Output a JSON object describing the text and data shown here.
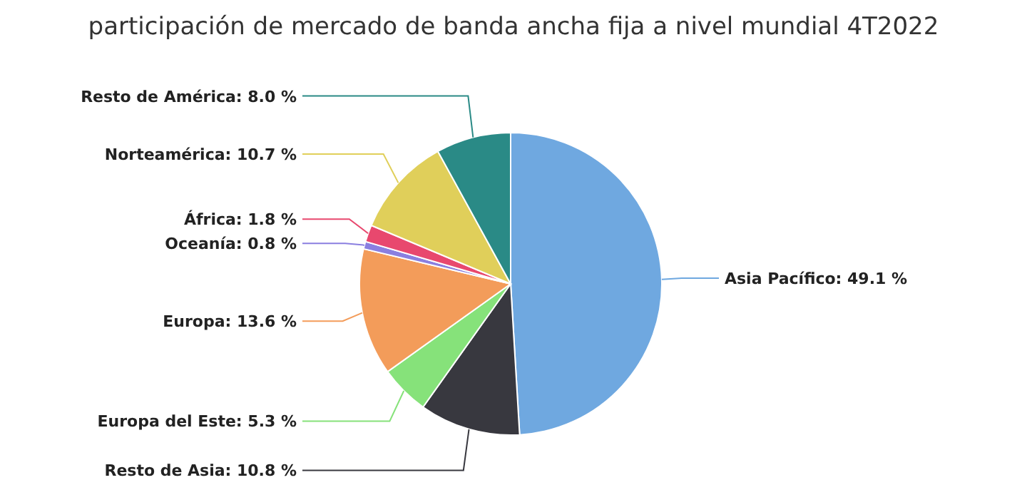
{
  "chart_data": {
    "type": "pie",
    "title": "participación de mercado de banda ancha fija a nivel mundial 4T2022",
    "categories": [
      "Asia Pacífico",
      "Resto de Asia",
      "Europa del Este",
      "Europa",
      "Oceanía",
      "África",
      "Norteamérica",
      "Resto de América"
    ],
    "values": [
      49.1,
      10.8,
      5.3,
      13.6,
      0.8,
      1.8,
      10.7,
      8.0
    ],
    "value_labels": [
      "49.1 %",
      "10.8 %",
      "5.3 %",
      "13.6 %",
      "0.8 %",
      "1.8 %",
      "10.7 %",
      "8.0 %"
    ],
    "colors": [
      "#6fa8e0",
      "#38383f",
      "#86e27a",
      "#f39c5a",
      "#8a7fe0",
      "#e8486e",
      "#e0cf5a",
      "#2a8a86"
    ]
  }
}
